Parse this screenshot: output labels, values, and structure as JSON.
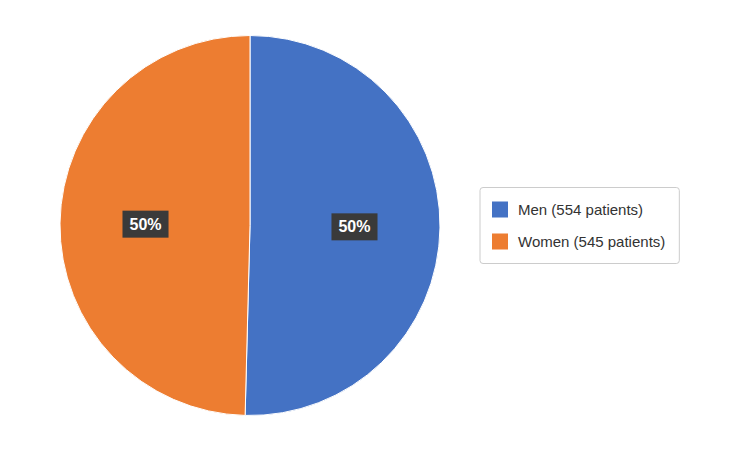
{
  "chart_data": {
    "type": "pie",
    "categories": [
      "Men (554 patients)",
      "Women (545 patients)"
    ],
    "values": [
      554,
      545
    ],
    "value_labels": [
      "50%",
      "50%"
    ],
    "colors": [
      "#4472C4",
      "#ED7D31"
    ],
    "data_labels": true,
    "legend": "right"
  }
}
